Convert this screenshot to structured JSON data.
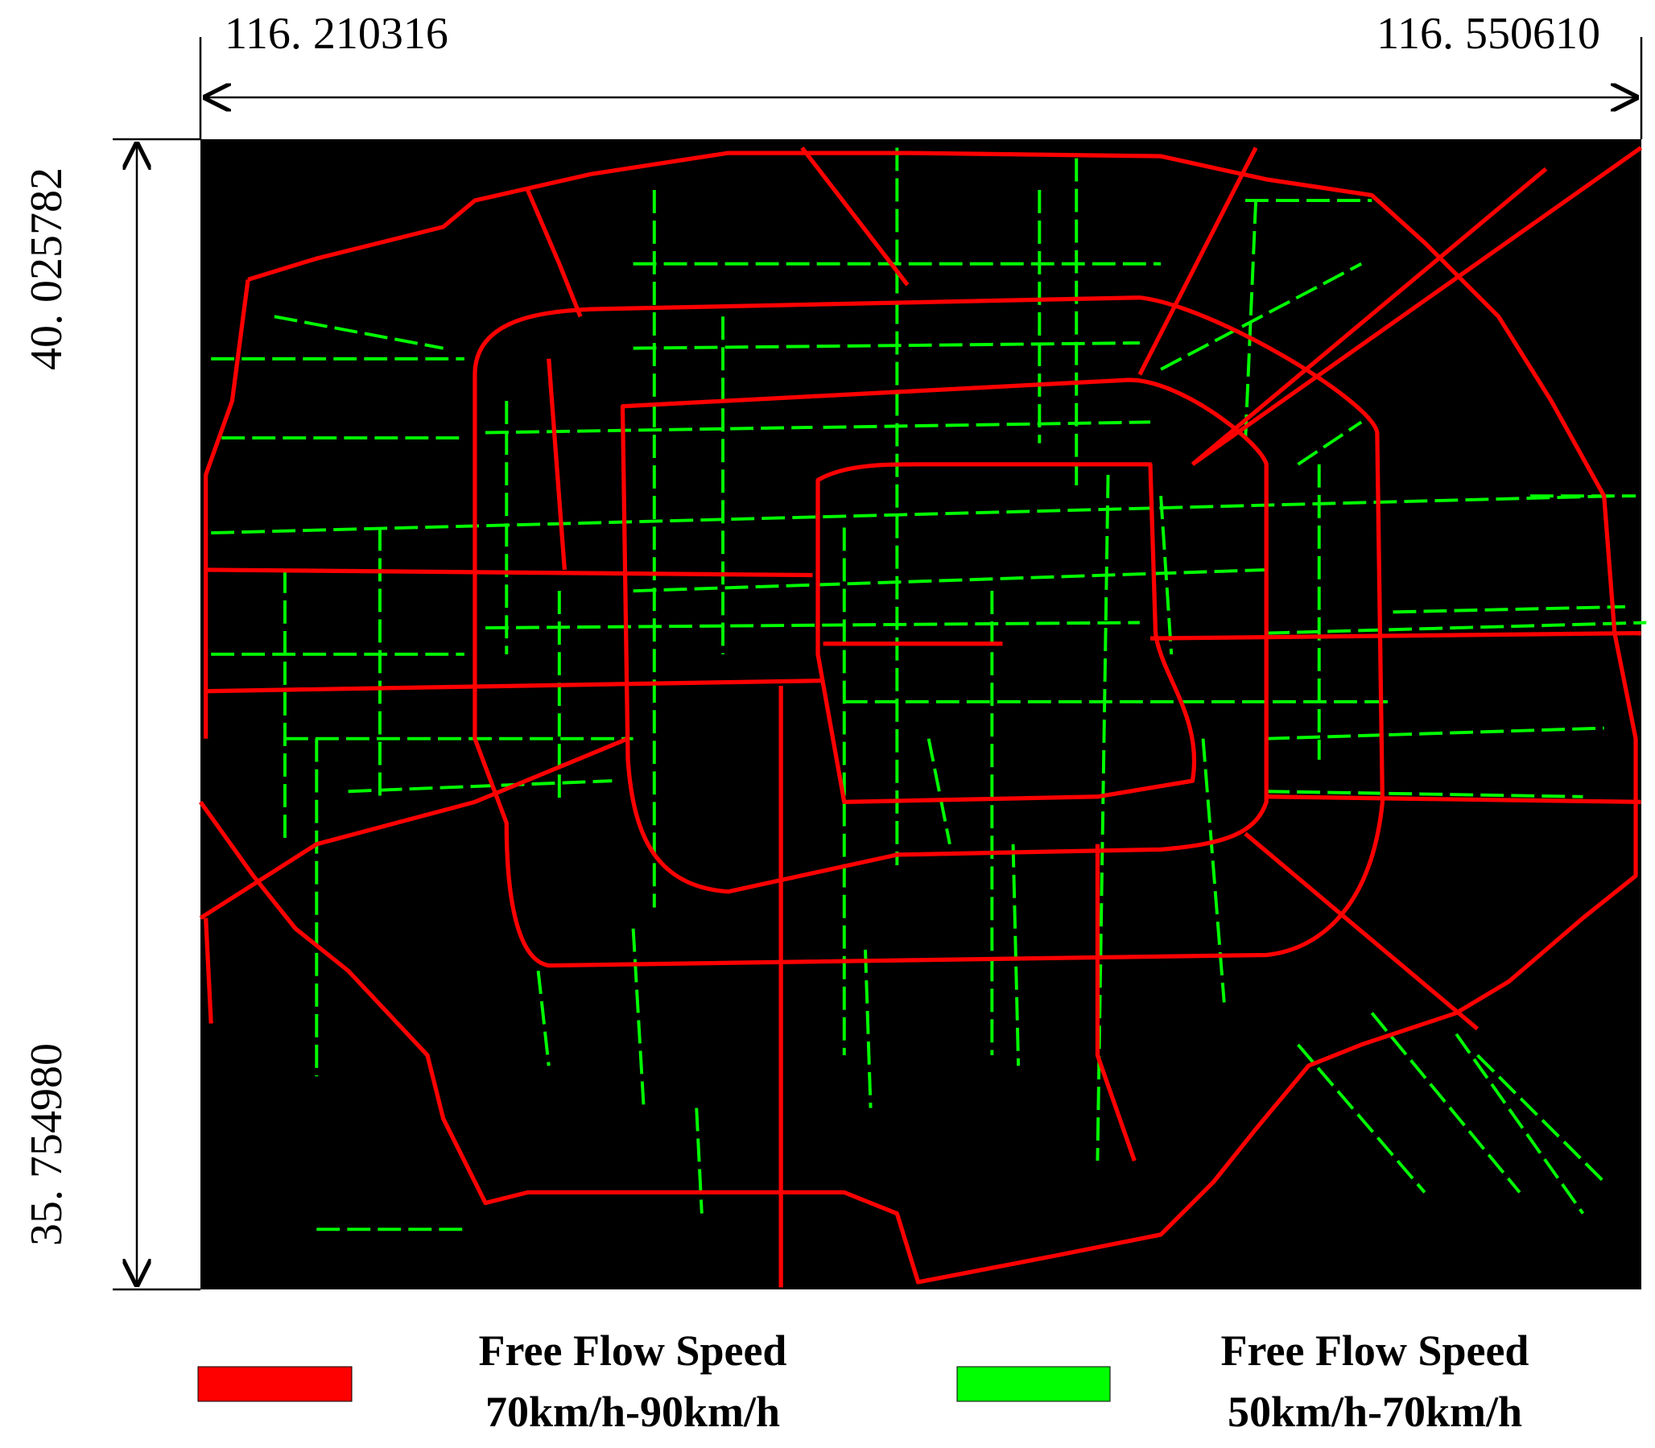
{
  "axis_labels": {
    "longitude_left": "116. 210316",
    "longitude_right": "116. 550610",
    "latitude_top": "40. 025782",
    "latitude_bottom": "35. 754980"
  },
  "legend": [
    {
      "line1": "Free Flow Speed",
      "line2": "70km/h-90km/h"
    },
    {
      "line1": "Free Flow Speed",
      "line2": "50km/h-70km/h"
    }
  ]
}
